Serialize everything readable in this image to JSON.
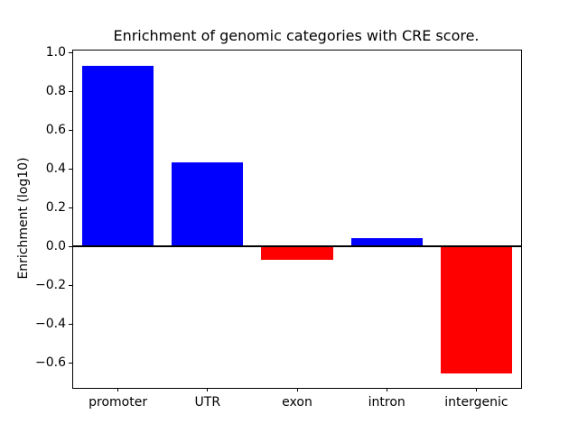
{
  "chart_data": {
    "type": "bar",
    "title": "Enrichment of genomic categories with CRE score.",
    "xlabel": "",
    "ylabel": "Enrichment (log10)",
    "categories": [
      "promoter",
      "UTR",
      "exon",
      "intron",
      "intergenic"
    ],
    "values": [
      0.93,
      0.435,
      -0.07,
      0.04,
      -0.655
    ],
    "positive_color": "#0000ff",
    "negative_color": "#ff0000",
    "ylim": [
      -0.73,
      1.01
    ],
    "yticks": [
      -0.6,
      -0.4,
      -0.2,
      0.0,
      0.2,
      0.4,
      0.6,
      0.8,
      1.0
    ],
    "grid": false,
    "zero_line": true,
    "bar_width_fraction": 0.8,
    "axis_color": "#000000",
    "background_color": "#ffffff"
  }
}
